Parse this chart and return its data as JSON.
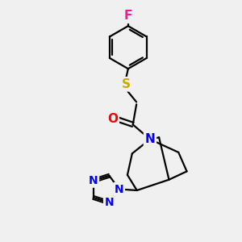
{
  "background_color": "#f0f0f0",
  "bond_color": "#000000",
  "atom_colors": {
    "F": "#ff1493",
    "S": "#ccaa00",
    "O": "#ff0000",
    "N": "#0000ff",
    "C": "#000000"
  },
  "bond_width": 1.6,
  "fig_size": [
    3.0,
    3.0
  ],
  "dpi": 100,
  "xlim": [
    0,
    10
  ],
  "ylim": [
    0,
    10
  ]
}
